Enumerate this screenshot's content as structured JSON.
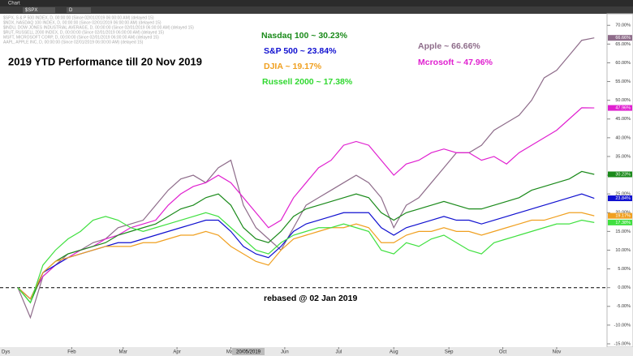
{
  "toolbar": {
    "tab": "Chart",
    "symbol": "$SPX",
    "interval": "D"
  },
  "chart_data": {
    "type": "line",
    "title": "2019 YTD Performance till 20 Nov 2019",
    "header_lines": [
      "$SPX, S & P 500 INDEX, D, 00:00:00 (Since 02/01/2019 06:00:00 AM) (delayed 15)",
      "$NDX, NASDAQ 100 INDEX, D, 00:00:00 (Since 02/01/2019 06:00:00 AM) (delayed 15)",
      "$INDU, DOW JONES INDUSTRIAL AVERAGE, D, 00:00:00 (Since 02/01/2019 06:00:00 AM) (delayed 15)",
      "$RUT, RUSSELL 2000 INDEX, D, 00:00:00 (Since 02/01/2019 06:00:00 AM) (delayed 15)",
      "MSFT, MICROSOFT CORP, D, 00:00:00 (Since 02/01/2019 06:00:00 AM) (delayed 15)",
      "AAPL, APPLE INC, D, 00:00:00 (Since 02/01/2019 06:00:00 AM) (delayed 15)"
    ],
    "annotations": [
      {
        "text": "Nasdaq 100 ~ 30.23%",
        "color": "#1a8a1a"
      },
      {
        "text": "S&P 500 ~ 23.84%",
        "color": "#1010d0"
      },
      {
        "text": "DJIA ~ 19.17%",
        "color": "#f0a020"
      },
      {
        "text": "Russell 2000 ~ 17.38%",
        "color": "#30d830"
      },
      {
        "text": "Apple ~ 66.66%",
        "color": "#8e6c8a"
      },
      {
        "text": "Mcrosoft ~ 47.96%",
        "color": "#e020d0"
      },
      {
        "text": "rebased @ 02 Jan 2019",
        "color": "#000000"
      }
    ],
    "xlabel": "Dys",
    "cursor_label": "20/05/2019",
    "xlim": [
      0,
      46.5
    ],
    "xticks": [
      {
        "value": 4.3,
        "label": "Feb"
      },
      {
        "value": 8.4,
        "label": "Mar"
      },
      {
        "value": 12.7,
        "label": "Apr"
      },
      {
        "value": 17,
        "label": "May"
      },
      {
        "value": 21.3,
        "label": "Jun"
      },
      {
        "value": 25.6,
        "label": "Jul"
      },
      {
        "value": 30,
        "label": "Aug"
      },
      {
        "value": 34.4,
        "label": "Sep"
      },
      {
        "value": 38.7,
        "label": "Oct"
      },
      {
        "value": 43,
        "label": "Nov"
      }
    ],
    "ylim": [
      -15,
      72
    ],
    "yticks": [
      {
        "value": -15,
        "label": "-15.00%"
      },
      {
        "value": -10,
        "label": "-10.00%"
      },
      {
        "value": -5,
        "label": "-5.00%"
      },
      {
        "value": 0,
        "label": "0.00%"
      },
      {
        "value": 5,
        "label": "5.00%"
      },
      {
        "value": 10,
        "label": "10.00%"
      },
      {
        "value": 15,
        "label": "15.00%"
      },
      {
        "value": 20,
        "label": "20.00%"
      },
      {
        "value": 25,
        "label": "25.00%"
      },
      {
        "value": 30,
        "label": "30.00%"
      },
      {
        "value": 35,
        "label": "35.00%"
      },
      {
        "value": 40,
        "label": "40.00%"
      },
      {
        "value": 45,
        "label": "45.00%"
      },
      {
        "value": 50,
        "label": "50.00%"
      },
      {
        "value": 55,
        "label": "55.00%"
      },
      {
        "value": 60,
        "label": "60.00%"
      },
      {
        "value": 65,
        "label": "65.00%"
      },
      {
        "value": 70,
        "label": "70.00%"
      }
    ],
    "baseline": 0,
    "series": [
      {
        "name": "Apple",
        "color": "#8e6c8a",
        "end_label": "66.66%",
        "values": [
          0,
          -8,
          3,
          6,
          9,
          10,
          12,
          13,
          16,
          17,
          18,
          22,
          26,
          29,
          30,
          28,
          32,
          34,
          22,
          16,
          13,
          10,
          16,
          22,
          24,
          26,
          28,
          30,
          28,
          24,
          16,
          22,
          24,
          28,
          32,
          36,
          36,
          38,
          42,
          44,
          46,
          50,
          56,
          58,
          62,
          66,
          66.66
        ]
      },
      {
        "name": "Microsoft",
        "color": "#e020d0",
        "end_label": "47.96%",
        "values": [
          0,
          -3,
          3,
          6,
          8,
          10,
          11,
          13,
          14,
          16,
          17,
          18,
          22,
          25,
          27,
          28,
          30,
          28,
          24,
          20,
          16,
          18,
          24,
          28,
          32,
          34,
          38,
          39,
          38,
          34,
          30,
          33,
          34,
          36,
          37,
          36,
          36,
          34,
          35,
          33,
          36,
          38,
          40,
          42,
          45,
          48,
          47.96
        ]
      },
      {
        "name": "Nasdaq 100",
        "color": "#1a8a1a",
        "end_label": "30.23%",
        "values": [
          0,
          -4,
          4,
          7,
          9,
          10,
          11,
          12,
          14,
          15,
          16,
          17,
          19,
          21,
          22,
          24,
          25,
          22,
          16,
          13,
          12,
          15,
          19,
          21,
          22,
          23,
          24,
          25,
          24,
          20,
          18,
          20,
          21,
          22,
          23,
          22,
          21,
          21,
          22,
          23,
          24,
          26,
          27,
          28,
          29,
          31,
          30.23
        ]
      },
      {
        "name": "S&P 500",
        "color": "#1010d0",
        "end_label": "23.84%",
        "values": [
          0,
          -3,
          4,
          6,
          8,
          9,
          10,
          11,
          12,
          12,
          13,
          14,
          15,
          16,
          17,
          18,
          18,
          15,
          11,
          9,
          8,
          11,
          15,
          17,
          18,
          19,
          20,
          20,
          20,
          16,
          14,
          16,
          17,
          18,
          19,
          18,
          18,
          17,
          18,
          19,
          20,
          21,
          22,
          23,
          24,
          25,
          23.84
        ]
      },
      {
        "name": "DJIA",
        "color": "#f0a020",
        "end_label": "19.17%",
        "values": [
          0,
          -3,
          4,
          7,
          8,
          9,
          10,
          11,
          11,
          11,
          12,
          12,
          13,
          14,
          14,
          15,
          14,
          11,
          9,
          7,
          6,
          10,
          13,
          14,
          15,
          16,
          16,
          17,
          16,
          12,
          12,
          14,
          15,
          15,
          16,
          15,
          15,
          14,
          15,
          16,
          17,
          18,
          18,
          19,
          20,
          20,
          19.17
        ]
      },
      {
        "name": "Russell 2000",
        "color": "#40e040",
        "end_label": "17.38%",
        "values": [
          0,
          -4,
          6,
          10,
          13,
          15,
          18,
          19,
          18,
          16,
          15,
          16,
          17,
          18,
          19,
          20,
          19,
          16,
          13,
          10,
          9,
          12,
          14,
          15,
          16,
          16,
          17,
          16,
          15,
          10,
          9,
          12,
          11,
          13,
          14,
          12,
          10,
          9,
          12,
          13,
          14,
          15,
          16,
          17,
          17,
          18,
          17.38
        ]
      }
    ]
  }
}
